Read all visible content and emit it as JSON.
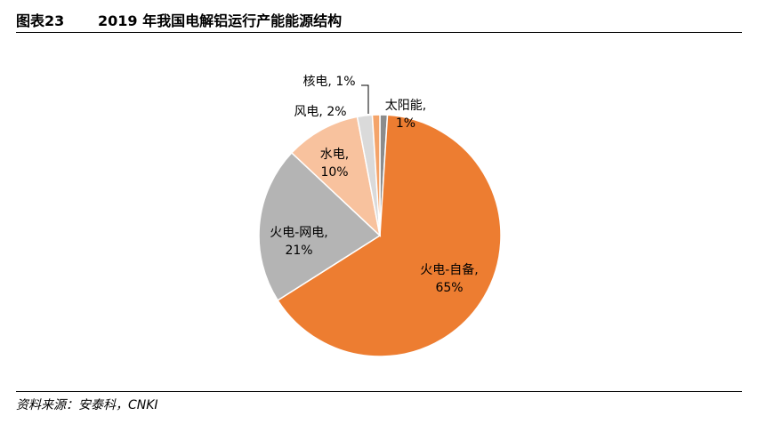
{
  "figure": {
    "number": "图表23",
    "title": "2019 年我国电解铝运行产能能源结构"
  },
  "source": "资料来源：安泰科，CNKI",
  "chart_data": {
    "type": "pie",
    "slices": [
      {
        "label": "太阳能",
        "label_line1": "太阳能,",
        "label_line2": "1%",
        "value": 1,
        "color": "#8c8c8c"
      },
      {
        "label": "火电-自备",
        "label_line1": "火电-自备,",
        "label_line2": "65%",
        "value": 65,
        "color": "#ed7d31"
      },
      {
        "label": "火电-网电",
        "label_line1": "火电-网电,",
        "label_line2": "21%",
        "value": 21,
        "color": "#b4b4b4"
      },
      {
        "label": "水电",
        "label_line1": "水电,",
        "label_line2": "10%",
        "value": 10,
        "color": "#f8c29e"
      },
      {
        "label": "风电",
        "label_line1": "风电, 2%",
        "label_line2": "",
        "value": 2,
        "color": "#dadada"
      },
      {
        "label": "核电",
        "label_line1": "核电, 1%",
        "label_line2": "",
        "value": 1,
        "color": "#f4a46a"
      }
    ]
  }
}
